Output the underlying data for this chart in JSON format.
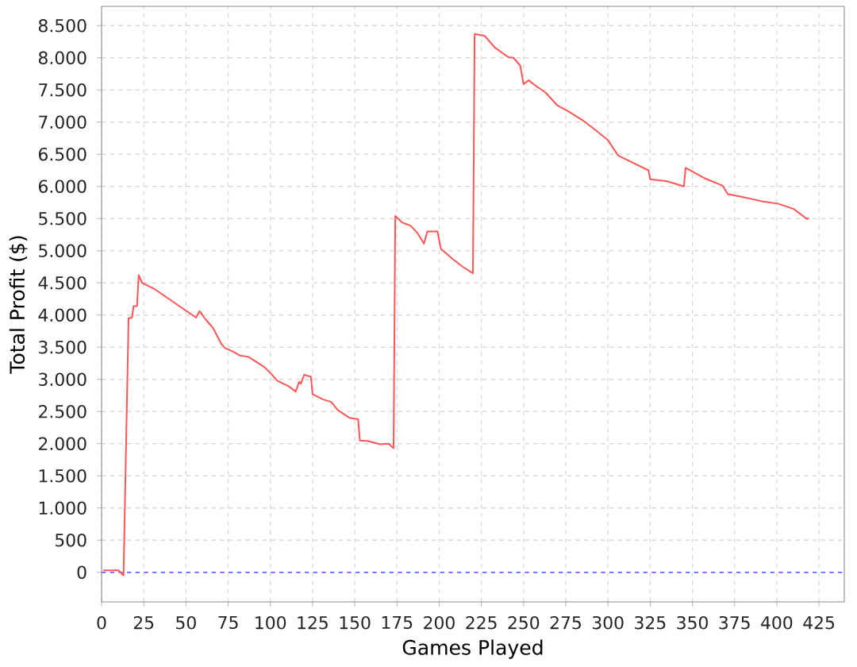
{
  "chart_data": {
    "type": "line",
    "xlabel": "Games Played",
    "ylabel": "Total Profit ($)",
    "x": [
      1,
      10,
      13,
      16,
      18,
      19,
      21,
      22,
      24,
      28,
      31,
      56,
      58,
      62,
      66,
      69,
      71,
      73,
      78,
      82,
      87,
      96,
      100,
      104,
      111,
      115,
      117,
      118,
      120,
      124,
      125,
      131,
      136,
      140,
      147,
      152,
      153,
      158,
      165,
      170,
      173,
      174,
      178,
      183,
      187,
      191,
      193,
      199,
      201,
      208,
      214,
      220,
      221,
      227,
      233,
      241,
      244,
      248,
      250,
      253,
      258,
      263,
      270,
      277,
      286,
      292,
      300,
      306,
      313,
      324,
      325,
      335,
      345,
      346,
      357,
      368,
      371,
      379,
      391,
      401,
      410,
      418,
      419
    ],
    "series": [
      {
        "color": "#ff5555",
        "values": [
          30,
          30,
          -50,
          3950,
          3960,
          4140,
          4140,
          4620,
          4500,
          4450,
          4410,
          3960,
          4060,
          3920,
          3800,
          3650,
          3550,
          3490,
          3430,
          3370,
          3350,
          3200,
          3100,
          2980,
          2890,
          2810,
          2960,
          2930,
          3070,
          3040,
          2770,
          2690,
          2650,
          2520,
          2400,
          2380,
          2050,
          2040,
          1990,
          2000,
          1930,
          5540,
          5440,
          5390,
          5280,
          5110,
          5300,
          5300,
          5030,
          4870,
          4750,
          4650,
          8370,
          8340,
          8160,
          8010,
          8000,
          7880,
          7590,
          7650,
          7550,
          7460,
          7260,
          7160,
          7010,
          6890,
          6720,
          6480,
          6390,
          6250,
          6110,
          6080,
          6000,
          6290,
          6130,
          6010,
          5880,
          5840,
          5770,
          5730,
          5650,
          5490,
          5510
        ]
      }
    ],
    "xlim": [
      0,
      440
    ],
    "ylim": [
      -460,
      8800
    ],
    "xticks": [
      0,
      25,
      50,
      75,
      100,
      125,
      150,
      175,
      200,
      225,
      250,
      275,
      300,
      325,
      350,
      375,
      400,
      425
    ],
    "yticks": [
      0,
      500,
      {
        "value": 1000,
        "label": "1.000"
      },
      {
        "value": 1500,
        "label": "1.500"
      },
      {
        "value": 2000,
        "label": "2.000"
      },
      {
        "value": 2500,
        "label": "2.500"
      },
      {
        "value": 3000,
        "label": "3.000"
      },
      {
        "value": 3500,
        "label": "3.500"
      },
      {
        "value": 4000,
        "label": "4.000"
      },
      {
        "value": 4500,
        "label": "4.500"
      },
      {
        "value": 5000,
        "label": "5.000"
      },
      {
        "value": 5500,
        "label": "5.500"
      },
      {
        "value": 6000,
        "label": "6.000"
      },
      {
        "value": 6500,
        "label": "6.500"
      },
      {
        "value": 7000,
        "label": "7.000"
      },
      {
        "value": 7500,
        "label": "7.500"
      },
      {
        "value": 8000,
        "label": "8.000"
      },
      {
        "value": 8500,
        "label": "8.500"
      }
    ],
    "grid": true,
    "ref_lines": [
      {
        "axis": "y",
        "value": 0,
        "color": "#5555ff",
        "line_style": "dashed"
      }
    ]
  }
}
